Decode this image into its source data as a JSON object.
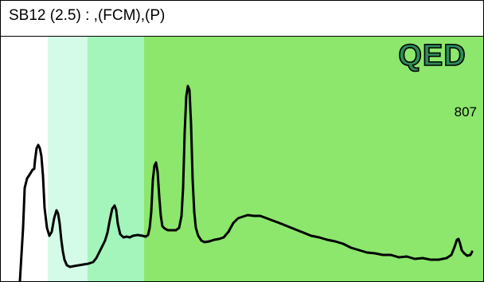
{
  "header": {
    "title": "SB12 (2.5) : ,(FCM),(P)"
  },
  "logo": {
    "text": "QED"
  },
  "readout": {
    "count": "807"
  },
  "colors": {
    "zone_light": "#d4fbe8",
    "zone_mid": "#a4f5bc",
    "zone_main": "#8ce76c",
    "trace": "#000000",
    "logo_stroke": "#000000",
    "logo_fill": "#2e8b57"
  }
}
